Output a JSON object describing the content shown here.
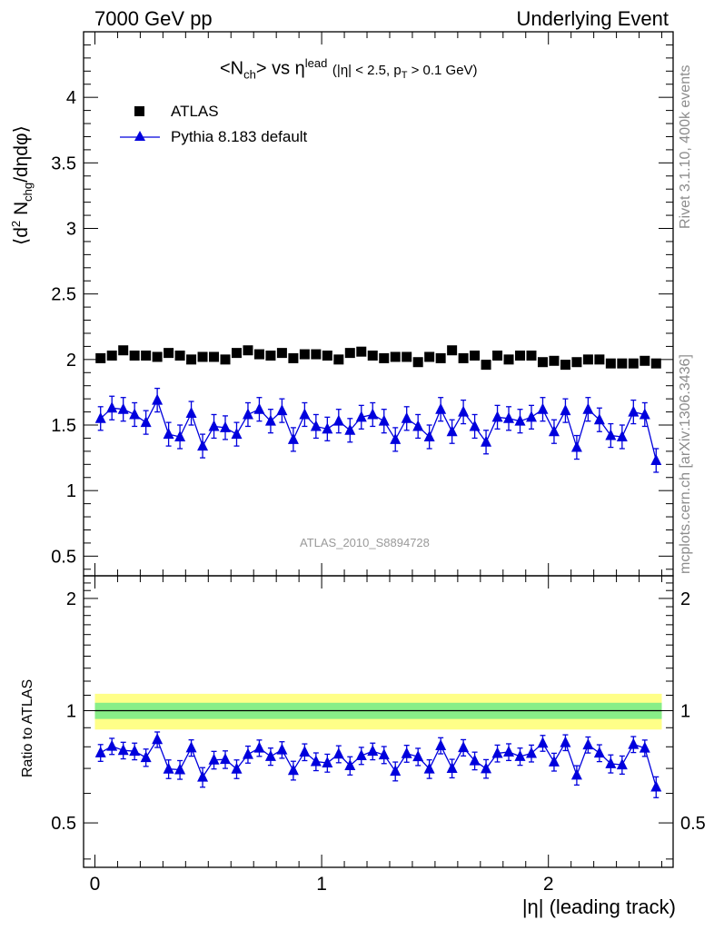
{
  "header": {
    "left": "7000 GeV pp",
    "right": "Underlying Event"
  },
  "side_text": {
    "rivet": "Rivet 3.1.10,  400k events",
    "mcplots": "mcplots.cern.ch [arXiv:1306.3436]"
  },
  "analysis_label": "ATLAS_2010_S8894728",
  "title": {
    "main": "<N",
    "sub_ch": "ch",
    "mid": "> vs η",
    "sup_lead": "lead",
    "cut_text": "(|η| < 2.5, p",
    "sub_T": "T",
    "cut_end": " > 0.1 GeV)"
  },
  "legend": {
    "data_label": "ATLAS",
    "mc_label": "Pythia 8.183 default"
  },
  "axes": {
    "ylabel_top": "⟨d² N_chg/dηdφ⟩",
    "ylabel_top_parts": [
      "⟨d",
      "2",
      " N",
      "chg",
      "/dηdφ⟩"
    ],
    "ylabel_bottom": "Ratio to ATLAS",
    "xlabel": "|η| (leading track)"
  },
  "colors": {
    "data": "#000000",
    "mc": "#0000dd",
    "band_outer": "#ffff88",
    "band_inner": "#88ee88",
    "side_text": "#8c8c8c"
  },
  "chart_data": {
    "type": "scatter",
    "title": "<N_ch> vs η^lead (|η| < 2.5, p_T > 0.1 GeV)",
    "xlabel": "|η| (leading track)",
    "ylabel": "⟨d² N_chg/dηdφ⟩",
    "xlim": [
      -0.05,
      2.55
    ],
    "ylim": [
      0.35,
      4.5
    ],
    "x_ticks": [
      0,
      1,
      2
    ],
    "y_ticks": [
      0.5,
      1,
      1.5,
      2,
      2.5,
      3,
      3.5,
      4
    ],
    "x": [
      0.025,
      0.075,
      0.125,
      0.175,
      0.225,
      0.275,
      0.325,
      0.375,
      0.425,
      0.475,
      0.525,
      0.575,
      0.625,
      0.675,
      0.725,
      0.775,
      0.825,
      0.875,
      0.925,
      0.975,
      1.025,
      1.075,
      1.125,
      1.175,
      1.225,
      1.275,
      1.325,
      1.375,
      1.425,
      1.475,
      1.525,
      1.575,
      1.625,
      1.675,
      1.725,
      1.775,
      1.825,
      1.875,
      1.925,
      1.975,
      2.025,
      2.075,
      2.125,
      2.175,
      2.225,
      2.275,
      2.325,
      2.375,
      2.425,
      2.475
    ],
    "series": [
      {
        "name": "ATLAS",
        "marker": "square",
        "values": [
          2.01,
          2.03,
          2.07,
          2.03,
          2.03,
          2.02,
          2.05,
          2.03,
          2.0,
          2.02,
          2.02,
          2.0,
          2.05,
          2.07,
          2.04,
          2.03,
          2.05,
          2.01,
          2.04,
          2.04,
          2.03,
          2.0,
          2.05,
          2.06,
          2.03,
          2.01,
          2.02,
          2.02,
          1.98,
          2.02,
          2.01,
          2.07,
          2.01,
          2.03,
          1.96,
          2.03,
          2.0,
          2.03,
          2.03,
          1.98,
          1.99,
          1.96,
          1.98,
          2.0,
          2.0,
          1.97,
          1.97,
          1.97,
          1.99,
          1.97
        ]
      },
      {
        "name": "Pythia 8.183 default",
        "marker": "triangle",
        "values": [
          1.55,
          1.63,
          1.62,
          1.58,
          1.52,
          1.69,
          1.43,
          1.41,
          1.59,
          1.34,
          1.49,
          1.48,
          1.43,
          1.58,
          1.62,
          1.53,
          1.61,
          1.39,
          1.58,
          1.49,
          1.47,
          1.53,
          1.46,
          1.56,
          1.58,
          1.53,
          1.39,
          1.55,
          1.49,
          1.41,
          1.62,
          1.45,
          1.6,
          1.49,
          1.37,
          1.56,
          1.55,
          1.53,
          1.56,
          1.62,
          1.45,
          1.61,
          1.33,
          1.62,
          1.54,
          1.42,
          1.41,
          1.6,
          1.58,
          1.23
        ]
      }
    ],
    "mc_error": 0.09,
    "ratio_panel": {
      "ylabel": "Ratio to ATLAS",
      "ylim": [
        0.38,
        2.3
      ],
      "y_ticks": [
        0.5,
        1,
        2
      ],
      "band_outer": 0.11,
      "band_inner": 0.05,
      "ratio_error": 0.04
    }
  }
}
